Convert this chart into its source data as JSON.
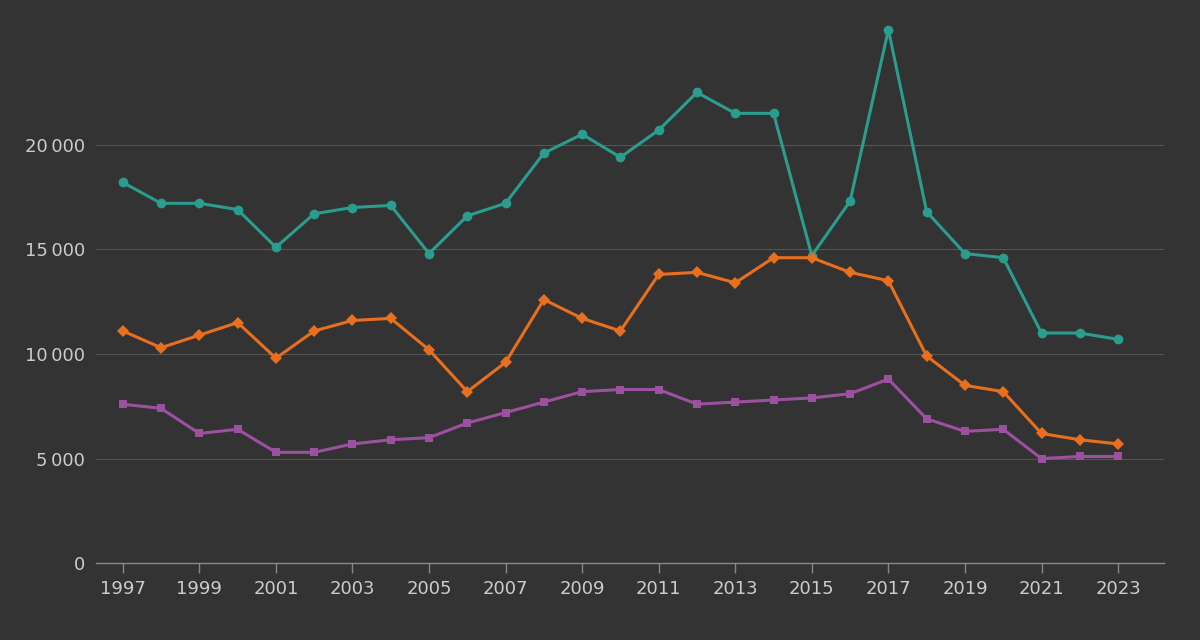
{
  "years": [
    1997,
    1998,
    1999,
    2000,
    2001,
    2002,
    2003,
    2004,
    2005,
    2006,
    2007,
    2008,
    2009,
    2010,
    2011,
    2012,
    2013,
    2014,
    2015,
    2016,
    2017,
    2018,
    2019,
    2020,
    2021,
    2022,
    2023
  ],
  "teal": [
    18200,
    17200,
    17200,
    16900,
    15100,
    16700,
    17000,
    17100,
    14800,
    16600,
    17200,
    19600,
    20500,
    19400,
    20700,
    22500,
    21500,
    21500,
    14700,
    17300,
    25500,
    16800,
    14800,
    14600,
    11000,
    11000,
    10700
  ],
  "orange": [
    11100,
    10300,
    10900,
    11500,
    9800,
    11100,
    11600,
    11700,
    10200,
    8200,
    9600,
    12600,
    11700,
    11100,
    13800,
    13900,
    13400,
    14600,
    14600,
    13900,
    13500,
    9900,
    8500,
    8200,
    6200,
    5900,
    5700
  ],
  "purple": [
    7600,
    7400,
    6200,
    6400,
    5300,
    5300,
    5700,
    5900,
    6000,
    6700,
    7200,
    7700,
    8200,
    8300,
    8300,
    7600,
    7700,
    7800,
    7900,
    8100,
    8800,
    6900,
    6300,
    6400,
    5000,
    5100,
    5100
  ],
  "teal_color": "#2a9d8f",
  "orange_color": "#e76f1e",
  "purple_color": "#9b51a0",
  "background_color": "#333333",
  "grid_color": "#555555",
  "text_color": "#cccccc",
  "tick_color": "#888888",
  "ylim": [
    0,
    26000
  ],
  "yticks": [
    0,
    5000,
    10000,
    15000,
    20000
  ],
  "xticks": [
    1997,
    1999,
    2001,
    2003,
    2005,
    2007,
    2009,
    2011,
    2013,
    2015,
    2017,
    2019,
    2021,
    2023
  ],
  "xlim_left": 1996.3,
  "xlim_right": 2024.2
}
